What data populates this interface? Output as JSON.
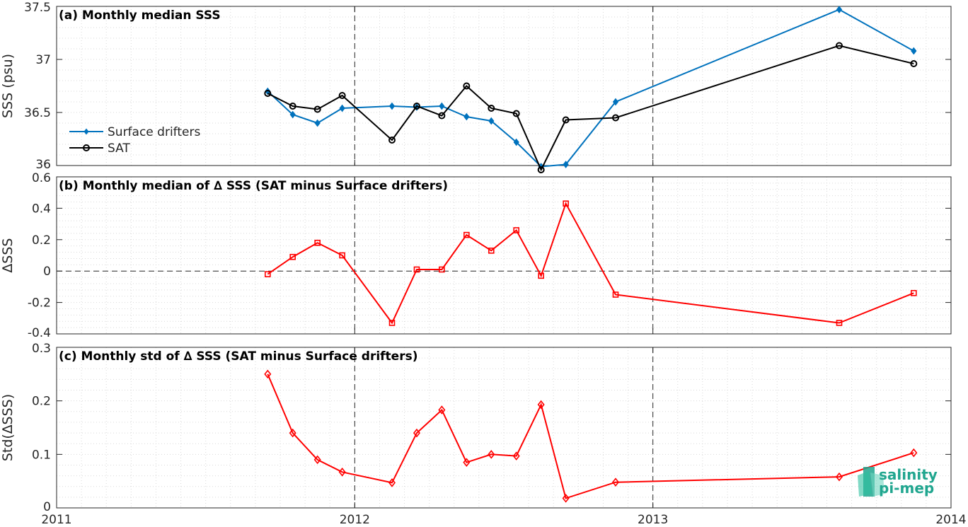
{
  "colors": {
    "drifters": "#0072bd",
    "sat": "#000000",
    "delta": "#ff0000",
    "grid": "#d9d9d9",
    "logo": "#21a68f"
  },
  "logo": {
    "line1": "salinity",
    "line2": "pi-mep"
  },
  "chart_data": [
    {
      "type": "line",
      "title": "(a) Monthly median SSS",
      "ylabel": "SSS (psu)",
      "xlim": [
        2011,
        2014
      ],
      "ylim": [
        36,
        37.5
      ],
      "xticks": [
        2011,
        2012,
        2013,
        2014
      ],
      "yticks": [
        36,
        36.5,
        37,
        37.5
      ],
      "ytick_labels": [
        "36",
        "36.5",
        "37",
        "37.5"
      ],
      "year_markers": [
        2012,
        2013
      ],
      "legend": {
        "location": "left",
        "entries": [
          "Surface drifters",
          "SAT"
        ]
      },
      "series": [
        {
          "name": "Surface drifters",
          "marker": "diamond-filled",
          "x": [
            2011.708,
            2011.792,
            2011.875,
            2011.958,
            2012.125,
            2012.208,
            2012.292,
            2012.375,
            2012.458,
            2012.542,
            2012.625,
            2012.708,
            2012.875,
            2013.625,
            2013.875
          ],
          "y": [
            36.7,
            36.48,
            36.4,
            36.54,
            36.56,
            36.55,
            36.56,
            36.46,
            36.42,
            36.22,
            35.99,
            36.01,
            36.6,
            37.47,
            37.08
          ]
        },
        {
          "name": "SAT",
          "marker": "circle-open",
          "x": [
            2011.708,
            2011.792,
            2011.875,
            2011.958,
            2012.125,
            2012.208,
            2012.292,
            2012.375,
            2012.458,
            2012.542,
            2012.625,
            2012.708,
            2012.875,
            2013.625,
            2013.875
          ],
          "y": [
            36.68,
            36.56,
            36.53,
            36.66,
            36.24,
            36.56,
            36.47,
            36.75,
            36.54,
            36.49,
            35.96,
            36.43,
            36.45,
            37.13,
            36.96
          ]
        }
      ]
    },
    {
      "type": "line",
      "title": "(b) Monthly median of ∆ SSS (SAT minus Surface drifters)",
      "ylabel": "∆SSS",
      "xlim": [
        2011,
        2014
      ],
      "ylim": [
        -0.4,
        0.6
      ],
      "xticks": [
        2011,
        2012,
        2013,
        2014
      ],
      "yticks": [
        -0.4,
        -0.2,
        0,
        0.2,
        0.4,
        0.6
      ],
      "ytick_labels": [
        "-0.4",
        "-0.2",
        "0",
        "0.2",
        "0.4",
        "0.6"
      ],
      "year_markers": [
        2012,
        2013
      ],
      "zero_line": true,
      "series": [
        {
          "name": "",
          "marker": "square-open",
          "x": [
            2011.708,
            2011.792,
            2011.875,
            2011.958,
            2012.125,
            2012.208,
            2012.292,
            2012.375,
            2012.458,
            2012.542,
            2012.625,
            2012.708,
            2012.875,
            2013.625,
            2013.875
          ],
          "y": [
            -0.02,
            0.09,
            0.18,
            0.1,
            -0.33,
            0.01,
            0.01,
            0.23,
            0.13,
            0.26,
            -0.03,
            0.43,
            -0.15,
            -0.33,
            -0.14
          ]
        }
      ]
    },
    {
      "type": "line",
      "title": "(c) Monthly std of ∆ SSS (SAT minus Surface drifters)",
      "ylabel": "Std(∆SSS)",
      "xlim": [
        2011,
        2014
      ],
      "ylim": [
        0,
        0.3
      ],
      "xticks": [
        2011,
        2012,
        2013,
        2014
      ],
      "xtick_labels": [
        "2011",
        "2012",
        "2013",
        "2014"
      ],
      "yticks": [
        0,
        0.1,
        0.2,
        0.3
      ],
      "ytick_labels": [
        "0",
        "0.1",
        "0.2",
        "0.3"
      ],
      "year_markers": [
        2012,
        2013
      ],
      "series": [
        {
          "name": "",
          "marker": "diamond-open",
          "x": [
            2011.708,
            2011.792,
            2011.875,
            2011.958,
            2012.125,
            2012.208,
            2012.292,
            2012.375,
            2012.458,
            2012.542,
            2012.625,
            2012.708,
            2012.875,
            2013.625,
            2013.875
          ],
          "y": [
            0.25,
            0.14,
            0.09,
            0.067,
            0.047,
            0.14,
            0.183,
            0.085,
            0.1,
            0.097,
            0.193,
            0.018,
            0.048,
            0.058,
            0.103
          ]
        }
      ]
    }
  ]
}
